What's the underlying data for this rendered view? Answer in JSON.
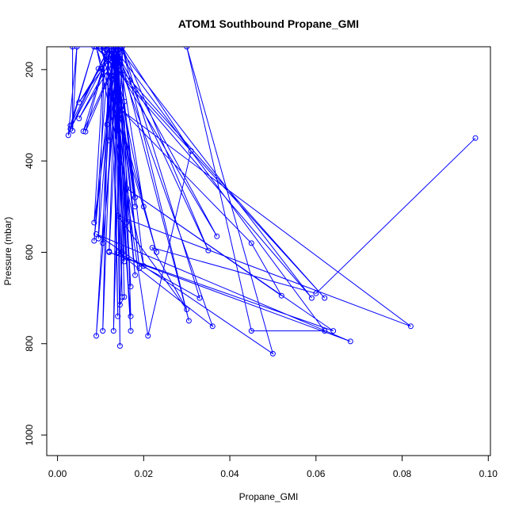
{
  "chart_data": {
    "type": "line",
    "title": "ATOM1 Southbound Propane_GMI",
    "xlabel": "Propane_GMI",
    "ylabel": "Pressure (mbar)",
    "xlim": [
      -0.0025,
      0.1005
    ],
    "ylim": [
      1045,
      150
    ],
    "y_reversed": true,
    "x_ticks": [
      0.0,
      0.02,
      0.04,
      0.06,
      0.08,
      0.1
    ],
    "x_tick_labels": [
      "0.00",
      "0.02",
      "0.04",
      "0.06",
      "0.08",
      "0.10"
    ],
    "y_ticks": [
      200,
      400,
      600,
      800,
      1000
    ],
    "y_tick_labels": [
      "200",
      "400",
      "600",
      "800",
      "1000"
    ],
    "grid": false,
    "legend": "none",
    "series": [
      {
        "color": "#0000ff",
        "marker": "open-circle",
        "points": [
          [
            0.097,
            350
          ],
          [
            0.06,
            690
          ],
          [
            0.022,
            590
          ],
          [
            0.03,
            725
          ],
          [
            0.014,
            520
          ],
          [
            0.082,
            762
          ],
          [
            0.015,
            290
          ],
          [
            0.045,
            580
          ],
          [
            0.052,
            695
          ],
          [
            0.016,
            460
          ],
          [
            0.064,
            772
          ],
          [
            0.012,
            600
          ],
          [
            0.068,
            795
          ],
          [
            0.009,
            560
          ],
          [
            0.05,
            822
          ],
          [
            0.03,
            150
          ],
          [
            0.045,
            772
          ],
          [
            0.062,
            772
          ],
          [
            0.013,
            150
          ],
          [
            0.036,
            762
          ],
          [
            0.014,
            600
          ],
          [
            0.033,
            700
          ],
          [
            0.015,
            150
          ],
          [
            0.031,
            378
          ],
          [
            0.021,
            783
          ],
          [
            0.011,
            150
          ],
          [
            0.037,
            565
          ],
          [
            0.013,
            150
          ],
          [
            0.035,
            596
          ],
          [
            0.015,
            150
          ],
          [
            0.0305,
            750
          ],
          [
            0.014,
            150
          ],
          [
            0.059,
            700
          ],
          [
            0.009,
            150
          ],
          [
            0.062,
            700
          ],
          [
            0.01,
            150
          ],
          [
            0.023,
            600
          ],
          [
            0.009,
            150
          ],
          [
            0.02,
            630
          ],
          [
            0.014,
            150
          ],
          [
            0.017,
            675
          ],
          [
            0.013,
            150
          ],
          [
            0.017,
            772
          ],
          [
            0.0135,
            150
          ],
          [
            0.0145,
            805
          ],
          [
            0.014,
            150
          ],
          [
            0.009,
            783
          ],
          [
            0.013,
            150
          ],
          [
            0.0105,
            772
          ],
          [
            0.012,
            150
          ],
          [
            0.017,
            740
          ],
          [
            0.015,
            150
          ],
          [
            0.013,
            772
          ],
          [
            0.014,
            150
          ],
          [
            0.015,
            698
          ],
          [
            0.013,
            150
          ],
          [
            0.014,
            740
          ],
          [
            0.0125,
            150
          ],
          [
            0.018,
            650
          ],
          [
            0.0135,
            150
          ],
          [
            0.019,
            635
          ],
          [
            0.013,
            150
          ],
          [
            0.018,
            500
          ],
          [
            0.014,
            150
          ],
          [
            0.02,
            500
          ],
          [
            0.0125,
            150
          ],
          [
            0.018,
            480
          ],
          [
            0.014,
            150
          ],
          [
            0.016,
            535
          ],
          [
            0.013,
            150
          ],
          [
            0.0155,
            620
          ],
          [
            0.0135,
            150
          ],
          [
            0.012,
            598
          ],
          [
            0.0145,
            150
          ],
          [
            0.0105,
            580
          ],
          [
            0.012,
            150
          ],
          [
            0.0085,
            575
          ],
          [
            0.013,
            150
          ],
          [
            0.0095,
            570
          ],
          [
            0.011,
            150
          ],
          [
            0.0085,
            535
          ],
          [
            0.014,
            150
          ],
          [
            0.012,
            355
          ],
          [
            0.013,
            150
          ],
          [
            0.0115,
            320
          ],
          [
            0.015,
            150
          ],
          [
            0.006,
            335
          ],
          [
            0.012,
            150
          ],
          [
            0.0065,
            336
          ],
          [
            0.015,
            150
          ],
          [
            0.005,
            307
          ],
          [
            0.014,
            150
          ],
          [
            0.005,
            272
          ],
          [
            0.013,
            150
          ],
          [
            0.003,
            330
          ],
          [
            0.012,
            150
          ],
          [
            0.003,
            322
          ],
          [
            0.0085,
            150
          ],
          [
            0.0025,
            344
          ],
          [
            0.0045,
            150
          ],
          [
            0.0035,
            334
          ],
          [
            0.0035,
            150
          ],
          [
            0.01,
            150
          ],
          [
            0.013,
            220
          ],
          [
            0.0095,
            198
          ],
          [
            0.014,
            170
          ],
          [
            0.01,
            155
          ],
          [
            0.012,
            150
          ],
          [
            0.0135,
            210
          ],
          [
            0.0155,
            270
          ],
          [
            0.014,
            330
          ],
          [
            0.015,
            600
          ],
          [
            0.0145,
            715
          ],
          [
            0.0155,
            698
          ],
          [
            0.014,
            150
          ]
        ]
      }
    ]
  }
}
